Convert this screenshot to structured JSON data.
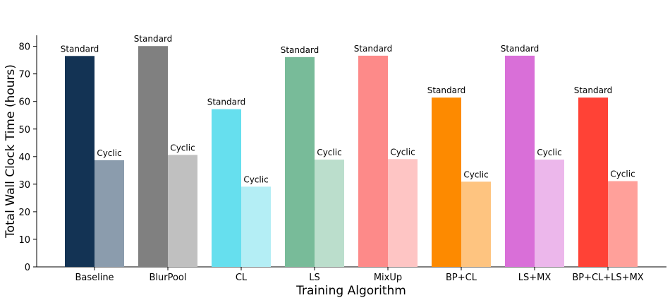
{
  "chart_data": {
    "type": "bar",
    "title": "",
    "xlabel": "Training Algorithm",
    "ylabel": "Total Wall Clock Time (hours)",
    "ylim": [
      0,
      84
    ],
    "yticks": [
      0,
      10,
      20,
      30,
      40,
      50,
      60,
      70,
      80
    ],
    "grid": false,
    "legend": "none",
    "categories": [
      "Baseline",
      "BlurPool",
      "CL",
      "LS",
      "MixUp",
      "BP+CL",
      "LS+MX",
      "BP+CL+LS+MX"
    ],
    "series": [
      {
        "name": "Standard",
        "values": [
          76.5,
          80.1,
          57.2,
          76.1,
          76.6,
          61.4,
          76.6,
          61.4
        ],
        "colors": [
          "#133354",
          "#808080",
          "#66dfee",
          "#78bb99",
          "#fd8a89",
          "#fd8a00",
          "#d96fd8",
          "#ff4236"
        ]
      },
      {
        "name": "Cyclic",
        "values": [
          38.7,
          40.6,
          29.1,
          38.9,
          39.1,
          30.9,
          38.9,
          31.1
        ],
        "colors": [
          "#8b9cad",
          "#c0c0c0",
          "#b4eef5",
          "#bbdecc",
          "#fec5c4",
          "#fec480",
          "#ecb7eb",
          "#ffa09a"
        ]
      }
    ]
  }
}
